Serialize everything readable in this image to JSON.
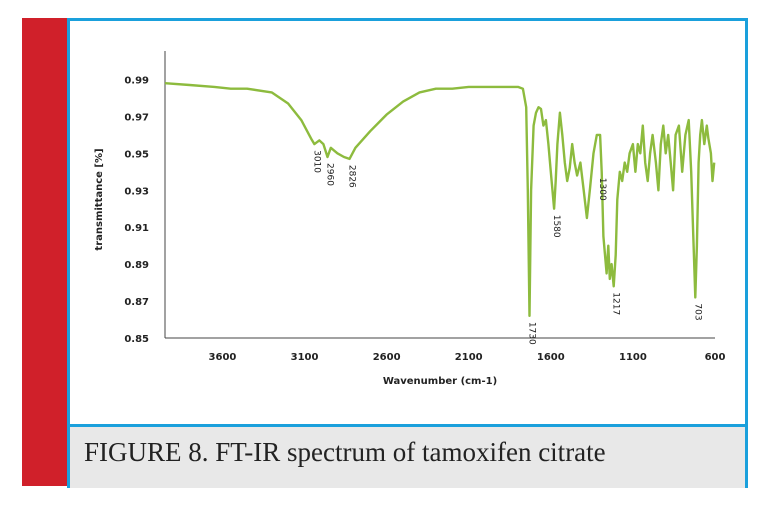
{
  "caption": "FIGURE 8. FT-IR spectrum of tamoxifen citrate",
  "colors": {
    "accent_bar": "#d0202a",
    "frame_border": "#1aa0dc",
    "caption_bg": "#e8e8e8",
    "series": "#8dbb3e"
  },
  "chart_data": {
    "type": "line",
    "title": "",
    "xlabel": "Wavenumber (cm-1)",
    "ylabel": "transmittance [%]",
    "xlim": [
      3950,
      600
    ],
    "x_reversed": true,
    "ylim": [
      0.85,
      1.0
    ],
    "x_ticks": [
      3600,
      3100,
      2600,
      2100,
      1600,
      1100,
      600
    ],
    "x_tick_labels": [
      "3600",
      "3100",
      "2600",
      "2100",
      "1600",
      "1100",
      "600"
    ],
    "y_ticks": [
      0.85,
      0.87,
      0.89,
      0.91,
      0.93,
      0.95,
      0.97,
      0.99
    ],
    "y_tick_labels": [
      "0.85",
      "0.87",
      "0.89",
      "0.91",
      "0.93",
      "0.95",
      "0.97",
      "0.99"
    ],
    "grid": false,
    "series": [
      {
        "values_xy": [
          [
            3950,
            0.988
          ],
          [
            3800,
            0.987
          ],
          [
            3650,
            0.986
          ],
          [
            3550,
            0.985
          ],
          [
            3450,
            0.985
          ],
          [
            3300,
            0.983
          ],
          [
            3200,
            0.977
          ],
          [
            3120,
            0.968
          ],
          [
            3060,
            0.958
          ],
          [
            3040,
            0.955
          ],
          [
            3010,
            0.957
          ],
          [
            2985,
            0.955
          ],
          [
            2960,
            0.948
          ],
          [
            2940,
            0.953
          ],
          [
            2900,
            0.95
          ],
          [
            2860,
            0.948
          ],
          [
            2826,
            0.947
          ],
          [
            2790,
            0.953
          ],
          [
            2700,
            0.962
          ],
          [
            2600,
            0.971
          ],
          [
            2500,
            0.978
          ],
          [
            2400,
            0.983
          ],
          [
            2300,
            0.985
          ],
          [
            2200,
            0.985
          ],
          [
            2100,
            0.986
          ],
          [
            2000,
            0.986
          ],
          [
            1900,
            0.986
          ],
          [
            1800,
            0.986
          ],
          [
            1770,
            0.985
          ],
          [
            1750,
            0.975
          ],
          [
            1740,
            0.93
          ],
          [
            1730,
            0.862
          ],
          [
            1720,
            0.93
          ],
          [
            1705,
            0.965
          ],
          [
            1690,
            0.972
          ],
          [
            1675,
            0.975
          ],
          [
            1660,
            0.974
          ],
          [
            1645,
            0.965
          ],
          [
            1630,
            0.968
          ],
          [
            1615,
            0.955
          ],
          [
            1600,
            0.94
          ],
          [
            1580,
            0.92
          ],
          [
            1570,
            0.935
          ],
          [
            1560,
            0.955
          ],
          [
            1545,
            0.972
          ],
          [
            1530,
            0.96
          ],
          [
            1515,
            0.945
          ],
          [
            1500,
            0.935
          ],
          [
            1485,
            0.942
          ],
          [
            1470,
            0.955
          ],
          [
            1455,
            0.945
          ],
          [
            1440,
            0.938
          ],
          [
            1420,
            0.945
          ],
          [
            1400,
            0.93
          ],
          [
            1380,
            0.915
          ],
          [
            1360,
            0.932
          ],
          [
            1340,
            0.95
          ],
          [
            1320,
            0.96
          ],
          [
            1300,
            0.96
          ],
          [
            1290,
            0.94
          ],
          [
            1280,
            0.905
          ],
          [
            1260,
            0.885
          ],
          [
            1250,
            0.9
          ],
          [
            1241,
            0.882
          ],
          [
            1230,
            0.89
          ],
          [
            1217,
            0.878
          ],
          [
            1205,
            0.895
          ],
          [
            1195,
            0.925
          ],
          [
            1180,
            0.94
          ],
          [
            1165,
            0.935
          ],
          [
            1150,
            0.945
          ],
          [
            1135,
            0.94
          ],
          [
            1120,
            0.95
          ],
          [
            1100,
            0.955
          ],
          [
            1085,
            0.94
          ],
          [
            1070,
            0.955
          ],
          [
            1055,
            0.95
          ],
          [
            1040,
            0.965
          ],
          [
            1025,
            0.945
          ],
          [
            1010,
            0.935
          ],
          [
            995,
            0.95
          ],
          [
            980,
            0.96
          ],
          [
            960,
            0.945
          ],
          [
            945,
            0.93
          ],
          [
            930,
            0.955
          ],
          [
            915,
            0.965
          ],
          [
            900,
            0.95
          ],
          [
            885,
            0.96
          ],
          [
            870,
            0.945
          ],
          [
            855,
            0.93
          ],
          [
            840,
            0.96
          ],
          [
            820,
            0.965
          ],
          [
            800,
            0.94
          ],
          [
            780,
            0.96
          ],
          [
            760,
            0.968
          ],
          [
            745,
            0.94
          ],
          [
            732,
            0.905
          ],
          [
            720,
            0.872
          ],
          [
            710,
            0.9
          ],
          [
            700,
            0.945
          ],
          [
            690,
            0.96
          ],
          [
            680,
            0.968
          ],
          [
            665,
            0.955
          ],
          [
            650,
            0.965
          ],
          [
            640,
            0.958
          ],
          [
            625,
            0.95
          ],
          [
            615,
            0.935
          ],
          [
            605,
            0.945
          ]
        ]
      }
    ],
    "annotations": [
      {
        "text": "3010",
        "x": 3040,
        "y": 0.955
      },
      {
        "text": "2960",
        "x": 2960,
        "y": 0.948
      },
      {
        "text": "2826",
        "x": 2826,
        "y": 0.947
      },
      {
        "text": "1730",
        "x": 1730,
        "y": 0.862
      },
      {
        "text": "1580",
        "x": 1580,
        "y": 0.92
      },
      {
        "text": "1300",
        "x": 1300,
        "y": 0.94
      },
      {
        "text": "1217",
        "x": 1217,
        "y": 0.878
      },
      {
        "text": "703",
        "x": 720,
        "y": 0.872
      }
    ]
  }
}
